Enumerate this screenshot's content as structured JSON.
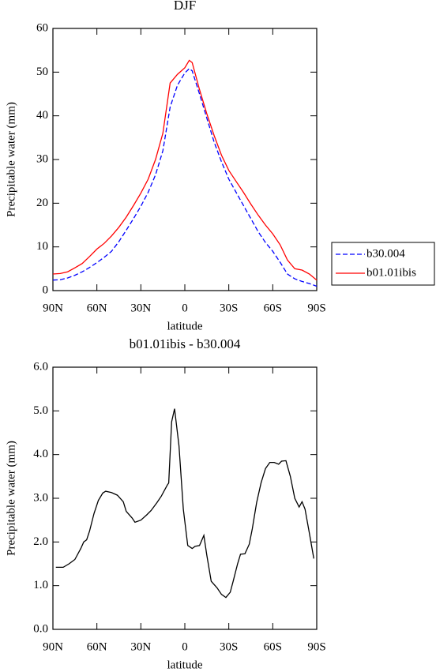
{
  "chart_data": [
    {
      "type": "line",
      "title": "DJF",
      "xlabel": "latitude",
      "ylabel": "Precipitable water (mm)",
      "x": [
        90,
        85,
        80,
        75,
        70,
        65,
        60,
        55,
        50,
        45,
        40,
        35,
        30,
        25,
        20,
        15,
        10,
        5,
        0,
        -3,
        -5,
        -10,
        -15,
        -20,
        -25,
        -30,
        -35,
        -40,
        -45,
        -50,
        -55,
        -60,
        -65,
        -70,
        -75,
        -80,
        -85,
        -90
      ],
      "series": [
        {
          "name": "b30.004",
          "color": "#0000ff",
          "style": "dashed",
          "values": [
            2.4,
            2.5,
            2.9,
            3.5,
            4.3,
            5.3,
            6.4,
            7.6,
            9,
            11.2,
            13.8,
            16.5,
            19.3,
            22.5,
            26.5,
            32,
            42,
            47,
            49.8,
            50.8,
            50.3,
            45,
            39.5,
            34,
            29.5,
            25.5,
            22.5,
            19.5,
            16.5,
            13.5,
            11,
            9,
            6.5,
            3.8,
            2.7,
            2.1,
            1.6,
            1.0
          ]
        },
        {
          "name": "b01.01ibis",
          "color": "#ff0000",
          "style": "solid",
          "values": [
            3.8,
            3.9,
            4.3,
            5.2,
            6.2,
            7.8,
            9.5,
            10.8,
            12.5,
            14.5,
            16.8,
            19.5,
            22.3,
            25.5,
            30,
            36,
            47.5,
            49.5,
            51,
            52.7,
            52.2,
            46,
            40.5,
            35.5,
            31,
            27.5,
            25,
            22.5,
            19.8,
            17.3,
            15,
            13,
            10.5,
            7,
            5,
            4.7,
            3.8,
            2.4
          ]
        }
      ],
      "xlim": [
        90,
        -90
      ],
      "xticks": [
        {
          "value": 90,
          "label": "90N"
        },
        {
          "value": 60,
          "label": "60N"
        },
        {
          "value": 30,
          "label": "30N"
        },
        0,
        {
          "value": -30,
          "label": "30S"
        },
        {
          "value": -60,
          "label": "60S"
        },
        {
          "value": -90,
          "label": "90S"
        }
      ],
      "ylim": [
        0,
        60
      ],
      "yticks": [
        0,
        10,
        20,
        30,
        40,
        50,
        60
      ],
      "legend": "right"
    },
    {
      "type": "line",
      "title": "b01.01ibis - b30.004",
      "xlabel": "latitude",
      "ylabel": "Precipitable water (mm)",
      "x": [
        88,
        83,
        79,
        75,
        71,
        69,
        67,
        65,
        62,
        59,
        56,
        54,
        50,
        46,
        42,
        40,
        36,
        34,
        30,
        26,
        23,
        19,
        16,
        12,
        11,
        9,
        7,
        4,
        1,
        -2,
        -5,
        -7,
        -10,
        -13,
        -15,
        -18,
        -22,
        -25,
        -28,
        -31,
        -33,
        -36,
        -38,
        -41,
        -44,
        -46,
        -49,
        -52,
        -55,
        -58,
        -61,
        -64,
        -66,
        -69,
        -72,
        -75,
        -78,
        -80,
        -82,
        -85,
        -88
      ],
      "series": [
        {
          "color": "#000000",
          "style": "solid",
          "values": [
            1.42,
            1.42,
            1.5,
            1.6,
            1.85,
            2.0,
            2.05,
            2.25,
            2.65,
            2.95,
            3.12,
            3.16,
            3.13,
            3.07,
            2.92,
            2.7,
            2.55,
            2.45,
            2.5,
            2.62,
            2.72,
            2.9,
            3.05,
            3.3,
            3.35,
            4.75,
            5.05,
            4.2,
            2.75,
            1.92,
            1.85,
            1.9,
            1.92,
            2.15,
            1.7,
            1.1,
            0.95,
            0.8,
            0.73,
            0.85,
            1.1,
            1.5,
            1.72,
            1.73,
            1.95,
            2.3,
            2.9,
            3.35,
            3.68,
            3.82,
            3.82,
            3.78,
            3.85,
            3.86,
            3.5,
            3.0,
            2.8,
            2.92,
            2.75,
            2.2,
            1.62
          ]
        }
      ],
      "xlim": [
        90,
        -90
      ],
      "xticks": [
        {
          "value": 90,
          "label": "90N"
        },
        {
          "value": 60,
          "label": "60N"
        },
        {
          "value": 30,
          "label": "30N"
        },
        0,
        {
          "value": -30,
          "label": "30S"
        },
        {
          "value": -60,
          "label": "60S"
        },
        {
          "value": -90,
          "label": "90S"
        }
      ],
      "ylim": [
        0,
        6
      ],
      "yticks": [
        {
          "value": 0,
          "label": "0.0"
        },
        {
          "value": 1,
          "label": "1.0"
        },
        {
          "value": 2,
          "label": "2.0"
        },
        {
          "value": 3,
          "label": "3.0"
        },
        {
          "value": 4,
          "label": "4.0"
        },
        {
          "value": 5,
          "label": "5.0"
        },
        {
          "value": 6,
          "label": "6.0"
        }
      ]
    }
  ]
}
